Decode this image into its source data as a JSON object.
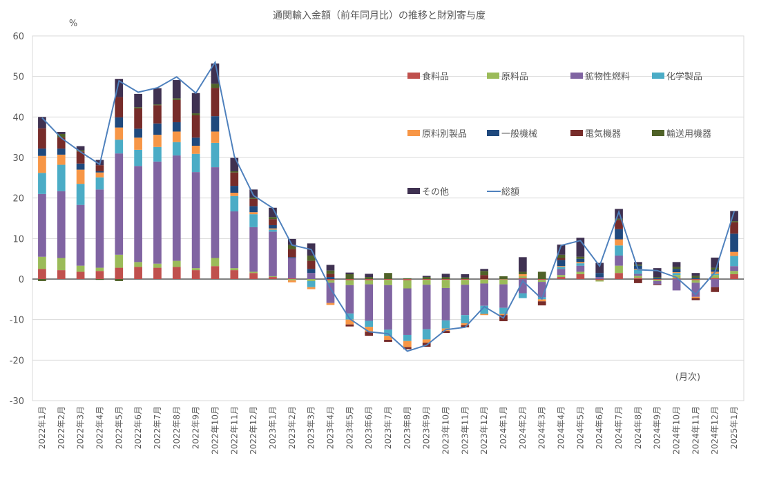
{
  "chart_data": {
    "type": "bar",
    "stacked": true,
    "title": "通関輸入金額（前年同月比）の推移と財別寄与度",
    "ylabel": "%",
    "xlabel": "(月次)",
    "ylim": [
      -30,
      60
    ],
    "yticks": [
      -30,
      -20,
      -10,
      0,
      10,
      20,
      30,
      40,
      50,
      60
    ],
    "grid": true,
    "legend_position": "top-right",
    "categories": [
      "2022年1月",
      "2022年2月",
      "2022年3月",
      "2022年4月",
      "2022年5月",
      "2022年6月",
      "2022年7月",
      "2022年8月",
      "2022年9月",
      "2022年10月",
      "2022年11月",
      "2022年12月",
      "2023年1月",
      "2023年2月",
      "2023年3月",
      "2023年4月",
      "2023年5月",
      "2023年6月",
      "2023年7月",
      "2023年8月",
      "2023年9月",
      "2023年10月",
      "2023年11月",
      "2023年12月",
      "2024年1月",
      "2024年2月",
      "2024年3月",
      "2024年4月",
      "2024年5月",
      "2024年6月",
      "2024年7月",
      "2024年8月",
      "2024年9月",
      "2024年10月",
      "2024年11月",
      "2024年12月",
      "2025年1月"
    ],
    "series": [
      {
        "name": "食料品",
        "color": "#c0504d",
        "values": [
          2.5,
          2.2,
          1.8,
          2.0,
          2.8,
          3.0,
          2.8,
          3.0,
          2.2,
          3.2,
          2.2,
          1.5,
          0.5,
          0.2,
          0.0,
          -0.3,
          -0.3,
          -0.3,
          -0.2,
          -0.3,
          -0.2,
          -0.2,
          -0.2,
          -0.1,
          -0.1,
          0.3,
          -0.2,
          0.5,
          1.2,
          -0.3,
          1.5,
          0.3,
          -0.2,
          0.2,
          -0.3,
          0.3,
          1.2
        ]
      },
      {
        "name": "原料品",
        "color": "#9bbb59",
        "values": [
          3.0,
          3.0,
          1.5,
          0.8,
          3.2,
          1.2,
          1.0,
          1.5,
          0.5,
          2.0,
          0.5,
          0.3,
          0.2,
          -0.3,
          -0.5,
          -0.6,
          -1.2,
          -1.0,
          -1.3,
          -2.0,
          -1.2,
          -2.0,
          -1.2,
          -1.0,
          -1.2,
          0.4,
          -0.5,
          0.5,
          0.6,
          -0.3,
          1.8,
          0.5,
          -0.3,
          0.8,
          -0.6,
          0.7,
          0.8
        ]
      },
      {
        "name": "鉱物性燃料",
        "color": "#8064a2",
        "values": [
          15.5,
          16.5,
          15.0,
          19.3,
          25.0,
          23.7,
          25.2,
          26.0,
          23.7,
          22.4,
          14.0,
          11.0,
          11.0,
          5.0,
          1.5,
          -5.0,
          -7.0,
          -9.0,
          -11.0,
          -11.5,
          -11.0,
          -8.0,
          -7.5,
          -5.5,
          -5.8,
          -3.5,
          -3.8,
          1.5,
          1.5,
          0.5,
          2.5,
          0.5,
          -0.8,
          -2.8,
          -3.5,
          -2.0,
          1.2
        ]
      },
      {
        "name": "化学製品",
        "color": "#4bacc6",
        "values": [
          5.2,
          6.5,
          5.2,
          3.0,
          3.4,
          4.0,
          3.6,
          3.3,
          4.5,
          6.0,
          3.8,
          3.2,
          0.5,
          0.0,
          -1.5,
          0.0,
          -1.5,
          -1.5,
          -1.5,
          -1.5,
          -2.5,
          -2.0,
          -2.0,
          -2.0,
          -1.5,
          -1.2,
          -0.5,
          0.5,
          0.6,
          0.0,
          2.5,
          1.0,
          0.0,
          0.5,
          0.0,
          0.3,
          2.5
        ]
      },
      {
        "name": "原料別製品",
        "color": "#f79646",
        "values": [
          4.2,
          2.5,
          3.5,
          1.2,
          3.0,
          3.0,
          3.0,
          2.6,
          2.0,
          2.8,
          0.8,
          0.5,
          0.3,
          -0.5,
          -0.5,
          -0.5,
          -1.2,
          -1.2,
          -1.0,
          -1.5,
          -0.8,
          -0.6,
          -0.5,
          -0.3,
          -0.3,
          0.5,
          -0.5,
          0.2,
          0.3,
          0.0,
          1.5,
          0.2,
          0.0,
          0.2,
          -0.3,
          0.5,
          1.0
        ]
      },
      {
        "name": "一般機械",
        "color": "#1f497d",
        "values": [
          1.8,
          1.5,
          1.5,
          0.3,
          2.5,
          2.2,
          2.8,
          2.3,
          2.0,
          3.8,
          1.7,
          1.5,
          0.8,
          0.2,
          1.0,
          0.5,
          0.0,
          0.0,
          0.0,
          0.0,
          0.0,
          0.0,
          0.0,
          0.0,
          0.0,
          0.0,
          0.0,
          1.5,
          0.8,
          1.0,
          2.5,
          0.8,
          0.3,
          0.8,
          0.3,
          0.5,
          4.5
        ]
      },
      {
        "name": "電気機器",
        "color": "#772c2a",
        "values": [
          5.0,
          2.8,
          3.0,
          1.5,
          5.0,
          5.0,
          4.5,
          5.5,
          5.5,
          7.0,
          3.3,
          1.8,
          1.5,
          2.0,
          2.0,
          0.8,
          -0.5,
          -1.0,
          -0.5,
          -0.5,
          -1.0,
          -0.5,
          -0.5,
          1.0,
          -1.5,
          0.0,
          -1.0,
          0.5,
          0.0,
          0.0,
          2.3,
          -1.0,
          -0.2,
          0.0,
          -0.5,
          -1.2,
          2.8
        ]
      },
      {
        "name": "輸送用機器",
        "color": "#4f6228",
        "values": [
          -0.5,
          0.8,
          0.3,
          -0.2,
          -0.5,
          0.3,
          0.2,
          0.4,
          0.5,
          1.0,
          0.3,
          0.3,
          0.5,
          1.0,
          1.3,
          0.8,
          1.2,
          0.5,
          1.5,
          0.2,
          0.5,
          0.5,
          0.4,
          1.0,
          0.7,
          0.6,
          1.8,
          0.8,
          0.5,
          0.0,
          0.3,
          0.3,
          0.2,
          0.5,
          0.5,
          0.5,
          0.3
        ]
      },
      {
        "name": "その他",
        "color": "#3f3151",
        "values": [
          2.8,
          0.5,
          1.0,
          1.3,
          4.5,
          3.3,
          4.0,
          4.5,
          5.0,
          5.0,
          3.3,
          2.0,
          2.3,
          1.5,
          3.0,
          1.4,
          0.4,
          0.8,
          0.0,
          0.0,
          0.3,
          0.8,
          0.8,
          0.5,
          0.0,
          3.6,
          0.0,
          2.5,
          4.7,
          2.5,
          2.4,
          0.6,
          2.2,
          1.2,
          0.7,
          2.5,
          2.5
        ]
      },
      {
        "name": "総額",
        "color": "#4f81bd",
        "type": "line",
        "values": [
          39.8,
          34.8,
          31.4,
          28.3,
          48.9,
          46.1,
          47.2,
          49.9,
          45.9,
          53.5,
          30.3,
          20.6,
          17.5,
          8.4,
          7.3,
          -2.3,
          -9.8,
          -13.0,
          -13.5,
          -17.8,
          -16.3,
          -12.5,
          -11.9,
          -6.8,
          -9.6,
          -0.5,
          -4.9,
          8.3,
          9.5,
          3.2,
          16.6,
          2.3,
          2.1,
          0.4,
          -3.8,
          1.7,
          16.7
        ]
      }
    ]
  }
}
